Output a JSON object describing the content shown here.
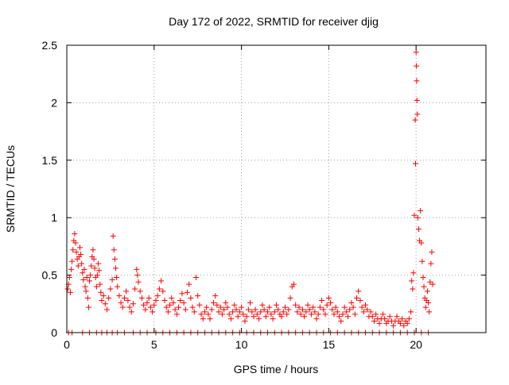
{
  "chart_data": {
    "type": "scatter",
    "title": "Day 172 of 2022, SRMTID for receiver djig",
    "xlabel": "GPS time / hours",
    "ylabel": "SRMTID / TECUs",
    "xlim": [
      0,
      24
    ],
    "ylim": [
      0,
      2.5
    ],
    "x_ticks": [
      0,
      5,
      10,
      15,
      20
    ],
    "x_tick_labels": [
      "0",
      "5",
      "10",
      "15",
      "20"
    ],
    "y_ticks": [
      0,
      0.5,
      1,
      1.5,
      2,
      2.5
    ],
    "y_tick_labels": [
      "0",
      "0.5",
      "1",
      "1.5",
      "2",
      "2.5"
    ],
    "grid": true,
    "marker": "plus",
    "series": [
      {
        "name": "SRMTID",
        "color": "#ff0000",
        "points": [
          [
            0.05,
            0.38
          ],
          [
            0.1,
            0.42
          ],
          [
            0.15,
            0.48
          ],
          [
            0.2,
            0.35
          ],
          [
            0.25,
            0.55
          ],
          [
            0.3,
            0.62
          ],
          [
            0.35,
            0.72
          ],
          [
            0.4,
            0.8
          ],
          [
            0.45,
            0.86
          ],
          [
            0.5,
            0.78
          ],
          [
            0.55,
            0.7
          ],
          [
            0.6,
            0.64
          ],
          [
            0.65,
            0.58
          ],
          [
            0.7,
            0.66
          ],
          [
            0.75,
            0.74
          ],
          [
            0.8,
            0.68
          ],
          [
            0.85,
            0.6
          ],
          [
            0.9,
            0.52
          ],
          [
            0.95,
            0.46
          ],
          [
            1.0,
            0.55
          ],
          [
            1.05,
            0.4
          ],
          [
            1.1,
            0.36
          ],
          [
            1.15,
            0.48
          ],
          [
            1.2,
            0.3
          ],
          [
            1.25,
            0.22
          ],
          [
            1.3,
            0.45
          ],
          [
            1.35,
            0.5
          ],
          [
            1.4,
            0.58
          ],
          [
            1.45,
            0.66
          ],
          [
            1.5,
            0.72
          ],
          [
            1.55,
            0.64
          ],
          [
            1.6,
            0.56
          ],
          [
            1.65,
            0.48
          ],
          [
            1.7,
            0.4
          ],
          [
            1.75,
            0.5
          ],
          [
            1.8,
            0.6
          ],
          [
            1.85,
            0.54
          ],
          [
            1.9,
            0.42
          ],
          [
            1.95,
            0.35
          ],
          [
            2.0,
            0.28
          ],
          [
            2.1,
            0.32
          ],
          [
            2.2,
            0.25
          ],
          [
            2.3,
            0.2
          ],
          [
            2.4,
            0.3
          ],
          [
            2.5,
            0.38
          ],
          [
            2.6,
            0.46
          ],
          [
            2.65,
            0.84
          ],
          [
            2.7,
            0.72
          ],
          [
            2.75,
            0.64
          ],
          [
            2.8,
            0.56
          ],
          [
            2.85,
            0.48
          ],
          [
            2.9,
            0.4
          ],
          [
            3.0,
            0.32
          ],
          [
            3.1,
            0.26
          ],
          [
            3.2,
            0.22
          ],
          [
            3.3,
            0.3
          ],
          [
            3.4,
            0.36
          ],
          [
            3.5,
            0.28
          ],
          [
            3.6,
            0.22
          ],
          [
            3.7,
            0.18
          ],
          [
            3.8,
            0.25
          ],
          [
            3.9,
            0.38
          ],
          [
            4.0,
            0.55
          ],
          [
            4.05,
            0.5
          ],
          [
            4.1,
            0.44
          ],
          [
            4.2,
            0.36
          ],
          [
            4.3,
            0.3
          ],
          [
            4.4,
            0.24
          ],
          [
            4.5,
            0.2
          ],
          [
            4.6,
            0.26
          ],
          [
            4.7,
            0.3
          ],
          [
            4.8,
            0.22
          ],
          [
            4.9,
            0.18
          ],
          [
            5.0,
            0.24
          ],
          [
            5.1,
            0.28
          ],
          [
            5.2,
            0.32
          ],
          [
            5.3,
            0.38
          ],
          [
            5.4,
            0.45
          ],
          [
            5.5,
            0.36
          ],
          [
            5.6,
            0.28
          ],
          [
            5.7,
            0.22
          ],
          [
            5.8,
            0.18
          ],
          [
            5.9,
            0.24
          ],
          [
            6.0,
            0.3
          ],
          [
            6.1,
            0.26
          ],
          [
            6.2,
            0.2
          ],
          [
            6.3,
            0.16
          ],
          [
            6.4,
            0.22
          ],
          [
            6.5,
            0.28
          ],
          [
            6.6,
            0.34
          ],
          [
            6.7,
            0.26
          ],
          [
            6.8,
            0.2
          ],
          [
            6.9,
            0.35
          ],
          [
            7.0,
            0.42
          ],
          [
            7.1,
            0.3
          ],
          [
            7.2,
            0.22
          ],
          [
            7.3,
            0.18
          ],
          [
            7.4,
            0.48
          ],
          [
            7.5,
            0.32
          ],
          [
            7.6,
            0.24
          ],
          [
            7.7,
            0.16
          ],
          [
            7.8,
            0.12
          ],
          [
            7.9,
            0.18
          ],
          [
            8.0,
            0.22
          ],
          [
            8.1,
            0.16
          ],
          [
            8.2,
            0.12
          ],
          [
            8.3,
            0.2
          ],
          [
            8.4,
            0.26
          ],
          [
            8.5,
            0.32
          ],
          [
            8.6,
            0.24
          ],
          [
            8.7,
            0.18
          ],
          [
            8.8,
            0.22
          ],
          [
            8.9,
            0.16
          ],
          [
            9.0,
            0.2
          ],
          [
            9.1,
            0.26
          ],
          [
            9.2,
            0.22
          ],
          [
            9.3,
            0.16
          ],
          [
            9.4,
            0.12
          ],
          [
            9.5,
            0.18
          ],
          [
            9.6,
            0.24
          ],
          [
            9.7,
            0.2
          ],
          [
            9.8,
            0.14
          ],
          [
            9.9,
            0.18
          ],
          [
            10.0,
            0.22
          ],
          [
            10.1,
            0.16
          ],
          [
            10.2,
            0.1
          ],
          [
            10.3,
            0.14
          ],
          [
            10.4,
            0.2
          ],
          [
            10.5,
            0.26
          ],
          [
            10.6,
            0.18
          ],
          [
            10.7,
            0.14
          ],
          [
            10.8,
            0.2
          ],
          [
            10.9,
            0.16
          ],
          [
            11.0,
            0.12
          ],
          [
            11.1,
            0.18
          ],
          [
            11.2,
            0.24
          ],
          [
            11.3,
            0.2
          ],
          [
            11.4,
            0.14
          ],
          [
            11.5,
            0.18
          ],
          [
            11.6,
            0.22
          ],
          [
            11.7,
            0.16
          ],
          [
            11.8,
            0.12
          ],
          [
            11.9,
            0.18
          ],
          [
            12.0,
            0.24
          ],
          [
            12.1,
            0.2
          ],
          [
            12.2,
            0.16
          ],
          [
            12.3,
            0.14
          ],
          [
            12.4,
            0.18
          ],
          [
            12.5,
            0.22
          ],
          [
            12.6,
            0.16
          ],
          [
            12.7,
            0.2
          ],
          [
            12.8,
            0.3
          ],
          [
            12.9,
            0.4
          ],
          [
            13.0,
            0.42
          ],
          [
            13.1,
            0.24
          ],
          [
            13.2,
            0.18
          ],
          [
            13.3,
            0.22
          ],
          [
            13.4,
            0.16
          ],
          [
            13.5,
            0.2
          ],
          [
            13.6,
            0.14
          ],
          [
            13.7,
            0.18
          ],
          [
            13.8,
            0.24
          ],
          [
            13.9,
            0.2
          ],
          [
            14.0,
            0.16
          ],
          [
            14.1,
            0.22
          ],
          [
            14.2,
            0.18
          ],
          [
            14.3,
            0.12
          ],
          [
            14.4,
            0.16
          ],
          [
            14.5,
            0.22
          ],
          [
            14.6,
            0.28
          ],
          [
            14.7,
            0.2
          ],
          [
            14.8,
            0.16
          ],
          [
            14.9,
            0.24
          ],
          [
            15.0,
            0.3
          ],
          [
            15.1,
            0.26
          ],
          [
            15.2,
            0.2
          ],
          [
            15.3,
            0.16
          ],
          [
            15.4,
            0.22
          ],
          [
            15.5,
            0.18
          ],
          [
            15.6,
            0.14
          ],
          [
            15.7,
            0.1
          ],
          [
            15.8,
            0.16
          ],
          [
            15.9,
            0.22
          ],
          [
            16.0,
            0.18
          ],
          [
            16.1,
            0.14
          ],
          [
            16.2,
            0.2
          ],
          [
            16.3,
            0.26
          ],
          [
            16.4,
            0.22
          ],
          [
            16.5,
            0.16
          ],
          [
            16.6,
            0.3
          ],
          [
            16.7,
            0.36
          ],
          [
            16.8,
            0.28
          ],
          [
            16.9,
            0.22
          ],
          [
            17.0,
            0.18
          ],
          [
            17.1,
            0.24
          ],
          [
            17.2,
            0.2
          ],
          [
            17.3,
            0.14
          ],
          [
            17.4,
            0.18
          ],
          [
            17.5,
            0.14
          ],
          [
            17.6,
            0.1
          ],
          [
            17.7,
            0.16
          ],
          [
            17.8,
            0.12
          ],
          [
            17.9,
            0.08
          ],
          [
            18.0,
            0.12
          ],
          [
            18.1,
            0.16
          ],
          [
            18.2,
            0.12
          ],
          [
            18.3,
            0.08
          ],
          [
            18.4,
            0.1
          ],
          [
            18.5,
            0.14
          ],
          [
            18.6,
            0.1
          ],
          [
            18.7,
            0.06
          ],
          [
            18.8,
            0.1
          ],
          [
            18.9,
            0.14
          ],
          [
            19.0,
            0.1
          ],
          [
            19.1,
            0.08
          ],
          [
            19.2,
            0.12
          ],
          [
            19.3,
            0.06
          ],
          [
            19.4,
            0.1
          ],
          [
            19.5,
            0.08
          ],
          [
            19.6,
            0.12
          ],
          [
            19.7,
            0.18
          ],
          [
            19.75,
            0.45
          ],
          [
            19.8,
            0.38
          ],
          [
            19.85,
            0.52
          ],
          [
            19.9,
            1.02
          ],
          [
            19.95,
            1.85
          ],
          [
            19.97,
            1.47
          ],
          [
            20.0,
            2.44
          ],
          [
            20.02,
            2.32
          ],
          [
            20.03,
            2.19
          ],
          [
            20.05,
            2.02
          ],
          [
            20.07,
            1.9
          ],
          [
            20.1,
            1.0
          ],
          [
            20.15,
            0.9
          ],
          [
            20.2,
            0.8
          ],
          [
            20.25,
            1.06
          ],
          [
            20.3,
            0.78
          ],
          [
            20.35,
            0.62
          ],
          [
            20.4,
            0.48
          ],
          [
            20.45,
            0.4
          ],
          [
            20.5,
            0.3
          ],
          [
            20.55,
            0.22
          ],
          [
            20.6,
            0.28
          ],
          [
            20.65,
            0.36
          ],
          [
            20.7,
            0.26
          ],
          [
            20.75,
            0.18
          ],
          [
            20.8,
            0.44
          ],
          [
            20.85,
            0.6
          ],
          [
            20.9,
            0.7
          ],
          [
            20.95,
            0.42
          ]
        ],
        "zero_points_x": [
          0.1,
          0.3,
          0.9,
          1.3,
          1.7,
          2.0,
          2.3,
          2.6,
          2.9,
          3.3,
          3.8,
          4.2,
          4.6,
          5.1,
          5.5,
          5.9,
          6.3,
          6.7,
          7.1,
          7.5,
          7.9,
          8.3,
          8.7,
          9.1,
          9.5,
          9.9,
          10.3,
          10.7,
          11.1,
          11.5,
          11.9,
          12.3,
          12.7,
          13.1,
          13.5,
          13.9,
          14.3,
          14.7,
          15.1,
          15.5,
          15.9,
          16.3,
          16.7,
          17.1,
          17.5,
          17.9,
          18.3,
          18.7,
          19.1,
          19.5,
          19.9,
          20.3,
          20.7
        ]
      }
    ]
  }
}
